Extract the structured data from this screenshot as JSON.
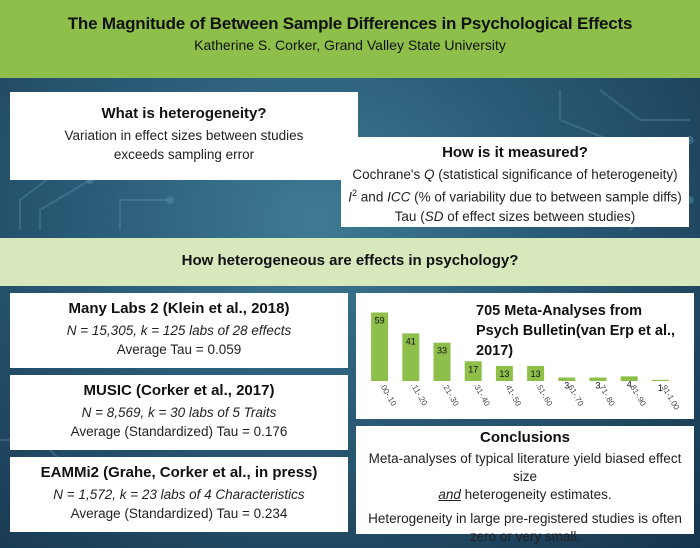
{
  "header": {
    "title": "The Magnitude of Between Sample Differences in Psychological Effects",
    "subtitle": "Katherine S. Corker, Grand Valley State University"
  },
  "what_box": {
    "heading": "What is heterogeneity?",
    "line1": "Variation in effect sizes between studies",
    "line2": "exceeds sampling error"
  },
  "how_box": {
    "heading": "How is it measured?",
    "line1_pre": "Cochrane's ",
    "line1_q": "Q",
    "line1_post": " (statistical significance of heterogeneity)",
    "line2_i": "I",
    "line2_sup": "2",
    "line2_mid": " and ",
    "line2_icc": "ICC",
    "line2_post": " (% of variability due to between sample diffs)",
    "line3_pre": "Tau (",
    "line3_sd": "SD",
    "line3_post": " of effect sizes between studies)"
  },
  "band": {
    "text": "How heterogeneous are effects in psychology?"
  },
  "studies": [
    {
      "heading": "Many Labs 2 (Klein et al., 2018)",
      "n_eq": "N = 15,305, ",
      "k_eq": "k = 125 labs  of 28 effects",
      "tau": "Average Tau = 0.059"
    },
    {
      "heading": "MUSIC (Corker et al., 2017)",
      "n_eq": "N = 8,569, ",
      "k_eq": "k = 30 labs  of 5 Traits",
      "tau": "Average (Standardized) Tau = 0.176"
    },
    {
      "heading": "EAMMi2 (Grahe, Corker et al., in press)",
      "n_eq": "N = 1,572, ",
      "k_eq": "k = 23 labs of 4 Characteristics",
      "tau": "Average (Standardized) Tau = 0.234"
    }
  ],
  "conclusions": {
    "heading": "Conclusions",
    "p1_line1": "Meta-analyses of typical literature yield biased effect size",
    "p1_and": "and",
    "p1_line2_post": " heterogeneity estimates.",
    "p2_line1": "Heterogeneity in large pre-registered studies is often",
    "p2_line2": "zero or very small."
  },
  "chart_data": {
    "type": "bar",
    "title": "705 Meta-Analyses from Psych Bulletin(van Erp et al., 2017)",
    "categories": [
      ".00-.10",
      ".11-.20",
      ".21-.30",
      ".31-.40",
      ".41-.50",
      ".51-.60",
      ".61-.70",
      ".71-.80",
      ".81-.90",
      ".91-1.00"
    ],
    "values": [
      59,
      41,
      33,
      17,
      13,
      13,
      3,
      3,
      4,
      1
    ],
    "bar_color": "#8dbf4a",
    "ylim": [
      0,
      62
    ],
    "grid": false,
    "legend": "none"
  },
  "colors": {
    "header_green": "#8dbf4a",
    "band_green": "#d8e8bd",
    "background_blue": "#2b5d78"
  }
}
